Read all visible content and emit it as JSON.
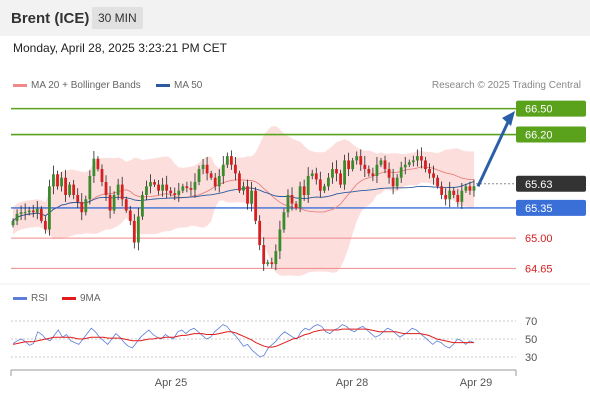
{
  "header": {
    "instrument": "Brent (ICE)",
    "timeframe": "30 MIN"
  },
  "datetime": "Monday, April 28, 2025 3:23:21 PM CET",
  "legend": [
    {
      "label": "MA 20 + Bollinger Bands",
      "color": "#f08a8a"
    },
    {
      "label": "MA 50",
      "color": "#2b5a9e"
    }
  ],
  "credit": "Research © 2025 Trading Central",
  "rsi_legend": [
    {
      "label": "RSI",
      "color": "#5b7fd6"
    },
    {
      "label": "9MA",
      "color": "#e01b1b"
    }
  ],
  "colors": {
    "up": "#3b8a2b",
    "down": "#d42020",
    "resistance": "#5aa11c",
    "support_pivot": "#3a6fd8",
    "support": "#f08a8a",
    "arrow": "#2a5fa8",
    "current": "#333333"
  },
  "chart_data": [
    {
      "type": "candlestick",
      "title": "Brent (ICE)",
      "timeframe": "30 MIN",
      "ylim": [
        64.55,
        66.6
      ],
      "x_tick_labels": [
        "Apr 25",
        "Apr 28",
        "Apr 29"
      ],
      "levels": [
        {
          "value": 66.5,
          "label": "66.50",
          "kind": "resistance"
        },
        {
          "value": 66.2,
          "label": "66.20",
          "kind": "resistance"
        },
        {
          "value": 65.63,
          "label": "65.63",
          "kind": "current"
        },
        {
          "value": 65.35,
          "label": "65.35",
          "kind": "pivot"
        },
        {
          "value": 65.0,
          "label": "65.00",
          "kind": "support"
        },
        {
          "value": 64.65,
          "label": "64.65",
          "kind": "support"
        }
      ],
      "forecast_arrow": {
        "from": 65.6,
        "to": 66.45
      },
      "closes": [
        65.2,
        65.28,
        65.3,
        65.3,
        65.32,
        65.3,
        65.34,
        65.2,
        65.1,
        65.6,
        65.74,
        65.6,
        65.7,
        65.5,
        65.62,
        65.5,
        65.42,
        65.3,
        65.45,
        65.72,
        65.92,
        65.8,
        65.65,
        65.5,
        65.32,
        65.5,
        65.62,
        65.45,
        65.32,
        65.2,
        64.95,
        65.25,
        65.5,
        65.6,
        65.65,
        65.62,
        65.55,
        65.62,
        65.55,
        65.52,
        65.5,
        65.55,
        65.6,
        65.58,
        65.56,
        65.65,
        65.8,
        65.85,
        65.75,
        65.7,
        65.6,
        65.72,
        65.85,
        65.95,
        65.85,
        65.75,
        65.55,
        65.6,
        65.4,
        65.55,
        65.2,
        64.92,
        64.7,
        64.72,
        64.7,
        64.85,
        65.1,
        65.3,
        65.5,
        65.4,
        65.35,
        65.6,
        65.5,
        65.72,
        65.75,
        65.68,
        65.55,
        65.6,
        65.7,
        65.8,
        65.75,
        65.62,
        65.9,
        65.8,
        65.9,
        65.95,
        65.85,
        65.8,
        65.75,
        65.72,
        65.85,
        65.9,
        65.8,
        65.7,
        65.6,
        65.7,
        65.82,
        65.85,
        65.88,
        65.9,
        65.95,
        65.9,
        65.8,
        65.75,
        65.7,
        65.6,
        65.5,
        65.45,
        65.55,
        65.5,
        65.42,
        65.55,
        65.6,
        65.55,
        65.6
      ]
    },
    {
      "type": "line",
      "title": "RSI",
      "ylim": [
        25,
        75
      ],
      "y_ticks": [
        70,
        50,
        30
      ],
      "series": [
        {
          "name": "RSI",
          "values": [
            45,
            48,
            50,
            47,
            43,
            45,
            58,
            55,
            50,
            48,
            54,
            60,
            52,
            55,
            48,
            46,
            44,
            50,
            56,
            62,
            58,
            52,
            48,
            44,
            50,
            56,
            52,
            46,
            42,
            40,
            46,
            52,
            56,
            60,
            55,
            52,
            50,
            55,
            52,
            50,
            58,
            60,
            56,
            60,
            62,
            58,
            54,
            50,
            52,
            58,
            62,
            66,
            64,
            58,
            54,
            48,
            42,
            44,
            38,
            34,
            30,
            32,
            40,
            44,
            48,
            54,
            58,
            55,
            52,
            50,
            58,
            62,
            60,
            64,
            66,
            64,
            58,
            56,
            60,
            62,
            66,
            64,
            60,
            58,
            62,
            64,
            60,
            56,
            52,
            54,
            58,
            62,
            60,
            56,
            52,
            55,
            58,
            62,
            60,
            56,
            52,
            48,
            44,
            48,
            46,
            42,
            40,
            44,
            50,
            48,
            44,
            48,
            46
          ]
        },
        {
          "name": "9MA",
          "values": [
            44,
            45,
            46,
            47,
            47,
            47,
            48,
            49,
            50,
            51,
            52,
            52,
            52,
            52,
            52,
            51,
            50,
            50,
            51,
            52,
            52,
            52,
            52,
            51,
            51,
            51,
            51,
            50,
            49,
            48,
            48,
            48,
            49,
            50,
            50,
            51,
            51,
            52,
            52,
            52,
            53,
            54,
            54,
            55,
            56,
            56,
            56,
            55,
            55,
            55,
            56,
            57,
            58,
            58,
            57,
            55,
            53,
            51,
            49,
            46,
            44,
            42,
            41,
            41,
            42,
            44,
            46,
            48,
            50,
            51,
            53,
            55,
            56,
            58,
            59,
            60,
            60,
            60,
            60,
            60,
            61,
            61,
            61,
            61,
            61,
            61,
            61,
            60,
            59,
            58,
            58,
            58,
            58,
            58,
            57,
            56,
            56,
            56,
            56,
            56,
            55,
            54,
            52,
            50,
            49,
            48,
            47,
            46,
            46,
            46,
            46,
            46,
            46
          ]
        }
      ]
    }
  ]
}
